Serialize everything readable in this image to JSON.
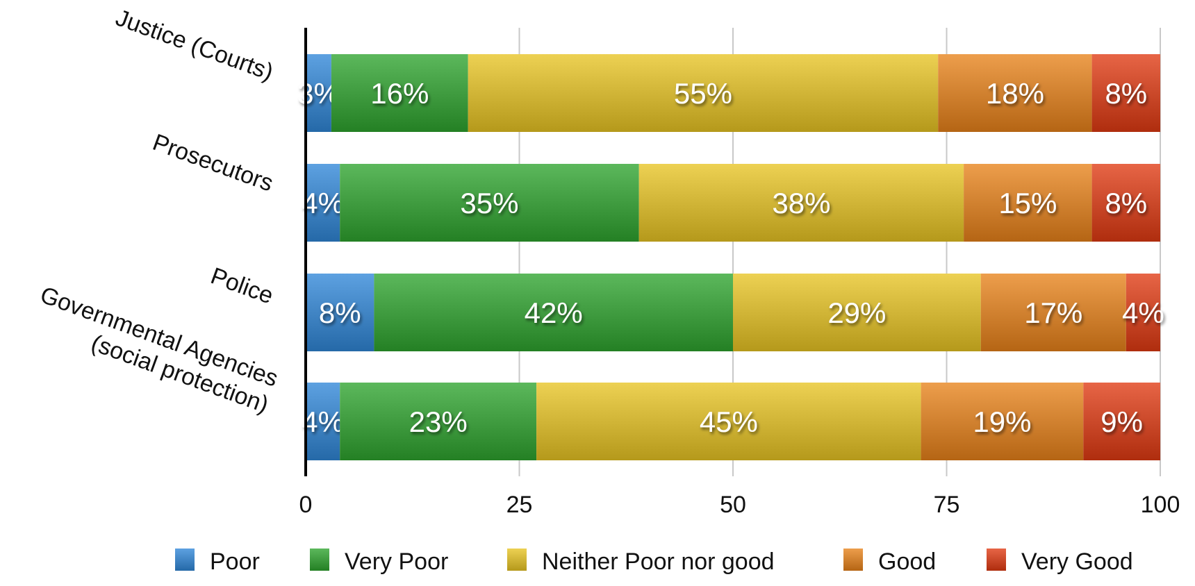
{
  "chart_data": {
    "type": "bar",
    "orientation": "horizontal",
    "stacked": true,
    "categories": [
      "Justice (Courts)",
      "Prosecutors",
      "Police",
      "Governmental Agencies (social protection)"
    ],
    "category_lines": [
      [
        "Justice (Courts)"
      ],
      [
        "Prosecutors"
      ],
      [
        "Police"
      ],
      [
        "Governmental Agencies",
        "(social protection)"
      ]
    ],
    "series": [
      {
        "name": "Poor",
        "values": [
          3,
          4,
          8,
          4
        ],
        "labels": [
          "3%",
          "4%",
          "8%",
          "4%"
        ],
        "color": "#2f86d8"
      },
      {
        "name": "Very Poor",
        "values": [
          16,
          35,
          42,
          23
        ],
        "labels": [
          "16%",
          "35%",
          "42%",
          "23%"
        ],
        "color": "#2ea42e"
      },
      {
        "name": "Neither Poor nor good",
        "values": [
          55,
          38,
          29,
          45
        ],
        "labels": [
          "55%",
          "38%",
          "29%",
          "45%"
        ],
        "color": "#e8c422"
      },
      {
        "name": "Good",
        "values": [
          18,
          15,
          17,
          19
        ],
        "labels": [
          "18%",
          "15%",
          "17%",
          "19%"
        ],
        "color": "#e8821a"
      },
      {
        "name": "Very Good",
        "values": [
          8,
          8,
          4,
          9
        ],
        "labels": [
          "8%",
          "8%",
          "4%",
          "9%"
        ],
        "color": "#e03a12"
      }
    ],
    "xlim": [
      0,
      100
    ],
    "xticks": [
      0,
      25,
      50,
      75,
      100
    ],
    "xtick_labels": [
      "0",
      "25",
      "50",
      "75",
      "100"
    ],
    "grid": true,
    "legend_position": "bottom"
  }
}
